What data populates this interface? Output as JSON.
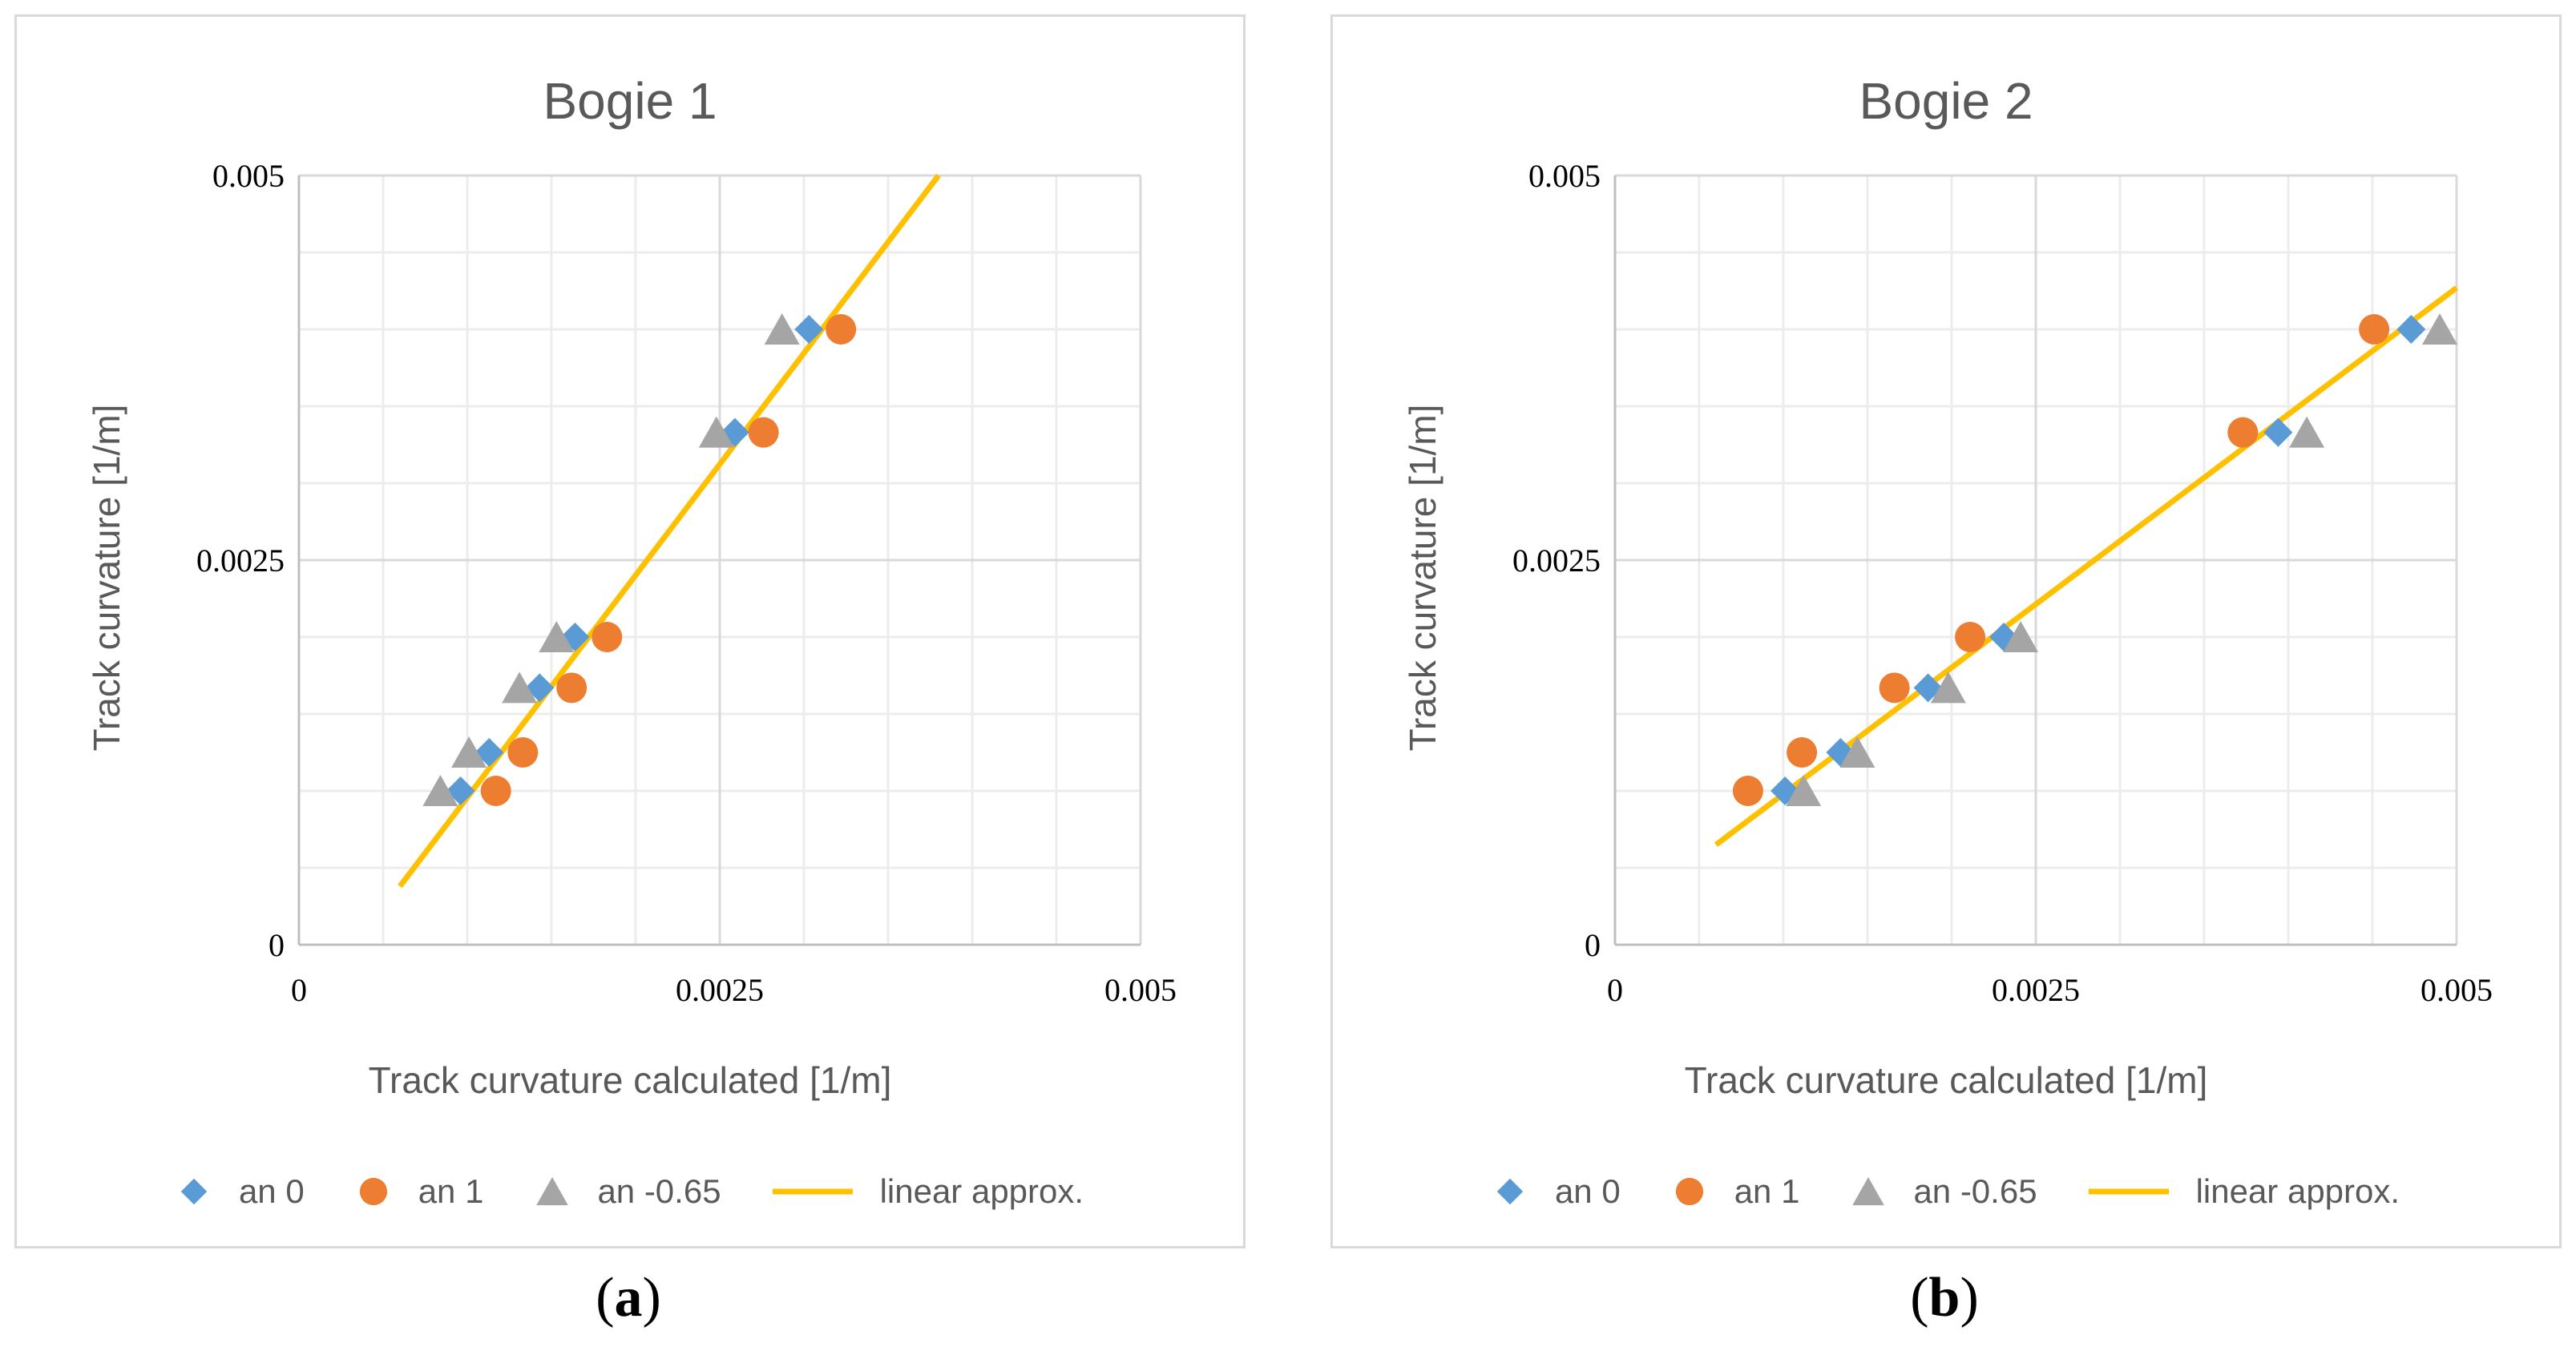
{
  "chart_data": [
    {
      "type": "scatter",
      "title": "Bogie 1",
      "xlabel": "Track curvature calculated [1/m]",
      "ylabel": "Track curvature [1/m]",
      "xlim": [
        0,
        0.005
      ],
      "ylim": [
        0,
        0.005
      ],
      "xticks": [
        0,
        0.0025,
        0.005
      ],
      "xtick_labels": [
        "0",
        "0.0025",
        "0.005"
      ],
      "yticks": [
        0,
        0.0025,
        0.005
      ],
      "ytick_labels": [
        "0",
        "0.0025",
        "0.005"
      ],
      "grid": true,
      "series": [
        {
          "name": "an 0",
          "marker": "diamond",
          "color": "#5b9bd5",
          "points": [
            [
              0.00096,
              0.001
            ],
            [
              0.00113,
              0.00125
            ],
            [
              0.00143,
              0.00167
            ],
            [
              0.00164,
              0.002
            ],
            [
              0.00259,
              0.00333
            ],
            [
              0.00303,
              0.004
            ]
          ]
        },
        {
          "name": "an 1",
          "marker": "circle",
          "color": "#ed7d31",
          "points": [
            [
              0.00117,
              0.001
            ],
            [
              0.00133,
              0.00125
            ],
            [
              0.00162,
              0.00167
            ],
            [
              0.00183,
              0.002
            ],
            [
              0.00276,
              0.00333
            ],
            [
              0.00322,
              0.004
            ]
          ]
        },
        {
          "name": "an -0.65",
          "marker": "triangle",
          "color": "#a5a5a5",
          "points": [
            [
              0.00084,
              0.001
            ],
            [
              0.00101,
              0.00125
            ],
            [
              0.00131,
              0.00167
            ],
            [
              0.00153,
              0.002
            ],
            [
              0.00248,
              0.00333
            ],
            [
              0.00287,
              0.004
            ]
          ]
        },
        {
          "name": "linear approx.",
          "marker": "line",
          "color": "#ffc000",
          "points": [
            [
              0.0006,
              0.00038
            ],
            [
              0.0038,
              0.005
            ]
          ]
        }
      ]
    },
    {
      "type": "scatter",
      "title": "Bogie 2",
      "xlabel": "Track curvature calculated [1/m]",
      "ylabel": "Track curvature [1/m]",
      "xlim": [
        0,
        0.005
      ],
      "ylim": [
        0,
        0.005
      ],
      "xticks": [
        0,
        0.0025,
        0.005
      ],
      "xtick_labels": [
        "0",
        "0.0025",
        "0.005"
      ],
      "yticks": [
        0,
        0.0025,
        0.005
      ],
      "ytick_labels": [
        "0",
        "0.0025",
        "0.005"
      ],
      "grid": true,
      "series": [
        {
          "name": "an 0",
          "marker": "diamond",
          "color": "#5b9bd5",
          "points": [
            [
              0.00101,
              0.001
            ],
            [
              0.00134,
              0.00125
            ],
            [
              0.00186,
              0.00167
            ],
            [
              0.00231,
              0.002
            ],
            [
              0.00394,
              0.00333
            ],
            [
              0.00473,
              0.004
            ]
          ]
        },
        {
          "name": "an 1",
          "marker": "circle",
          "color": "#ed7d31",
          "points": [
            [
              0.00079,
              0.001
            ],
            [
              0.00111,
              0.00125
            ],
            [
              0.00166,
              0.00167
            ],
            [
              0.00211,
              0.002
            ],
            [
              0.00373,
              0.00333
            ],
            [
              0.00451,
              0.004
            ]
          ]
        },
        {
          "name": "an -0.65",
          "marker": "triangle",
          "color": "#a5a5a5",
          "points": [
            [
              0.00112,
              0.001
            ],
            [
              0.00144,
              0.00125
            ],
            [
              0.00198,
              0.00167
            ],
            [
              0.00241,
              0.002
            ],
            [
              0.00411,
              0.00333
            ],
            [
              0.0049,
              0.004
            ]
          ]
        },
        {
          "name": "linear approx.",
          "marker": "line",
          "color": "#ffc000",
          "points": [
            [
              0.0006,
              0.00065
            ],
            [
              0.005,
              0.00427
            ]
          ]
        }
      ]
    }
  ],
  "captions": [
    "a",
    "b"
  ]
}
